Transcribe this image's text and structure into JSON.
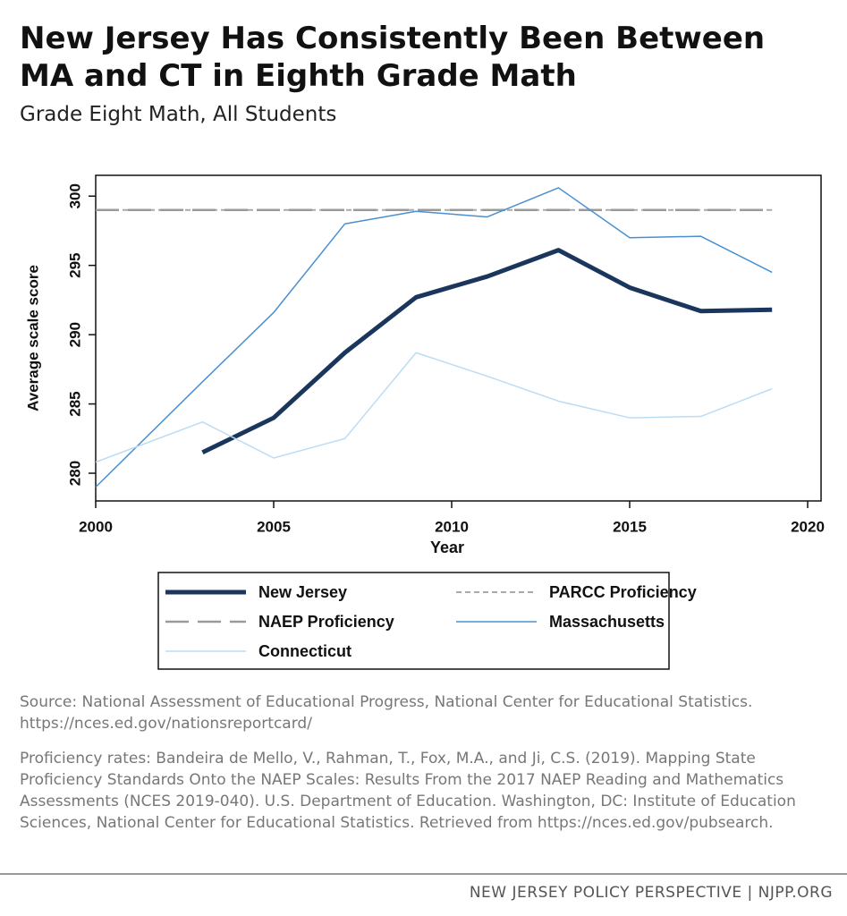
{
  "chart_data": {
    "type": "line",
    "title": "New Jersey Has Consistently Been Between MA and CT in Eighth Grade Math",
    "subtitle": "Grade Eight Math, All Students",
    "x_label": "Year",
    "y_label": "Average scale score",
    "x": [
      2000,
      2003,
      2005,
      2007,
      2009,
      2011,
      2013,
      2015,
      2017,
      2019
    ],
    "series": [
      {
        "name": "New Jersey",
        "color": "#1b365d",
        "width": 5,
        "line_style": "solid",
        "values": [
          null,
          281.5,
          284,
          288.7,
          292.7,
          294.2,
          296.1,
          293.4,
          291.7,
          291.8
        ]
      },
      {
        "name": "PARCC Proficiency",
        "color": "#aaaaaa",
        "width": 2,
        "line_style": "dotted",
        "values": [
          299,
          299,
          299,
          299,
          299,
          299,
          299,
          299,
          299,
          299
        ]
      },
      {
        "name": "NAEP Proficiency",
        "color": "#9a9a9a",
        "width": 2.5,
        "line_style": "dashed",
        "values": [
          299,
          299,
          299,
          299,
          299,
          299,
          299,
          299,
          299,
          299
        ]
      },
      {
        "name": "Massachusetts",
        "color": "#4a90d0",
        "width": 1.5,
        "line_style": "solid",
        "values": [
          279,
          286.6,
          291.6,
          298,
          298.9,
          298.5,
          300.6,
          297,
          297.1,
          294.5
        ]
      },
      {
        "name": "Connecticut",
        "color": "#bcdcf3",
        "width": 1.5,
        "line_style": "solid",
        "values": [
          280.8,
          283.7,
          281.1,
          282.5,
          288.7,
          287,
          285.2,
          284,
          284.1,
          286.1
        ]
      }
    ],
    "xlim": [
      2000,
      2020
    ],
    "xticks": [
      2000,
      2005,
      2010,
      2015,
      2020
    ],
    "ylim": [
      278,
      301.5
    ],
    "yticks": [
      280,
      285,
      290,
      295,
      300
    ],
    "grid": false,
    "legend": "bottom"
  },
  "notes": [
    "Source: National Assessment of Educational Progress, National Center for Educational Statistics. https://nces.ed.gov/nationsreportcard/",
    "Proficiency rates: Bandeira de Mello, V., Rahman, T., Fox, M.A., and Ji, C.S. (2019). Mapping State Proficiency Standards Onto the NAEP Scales: Results From the 2017 NAEP Reading and Mathematics Assessments (NCES 2019-040). U.S. Department of Education. Washington, DC: Institute of Education Sciences, National Center for Educational Statistics. Retrieved from https://nces.ed.gov/pubsearch."
  ],
  "footer": "NEW JERSEY POLICY PERSPECTIVE | NJPP.ORG"
}
